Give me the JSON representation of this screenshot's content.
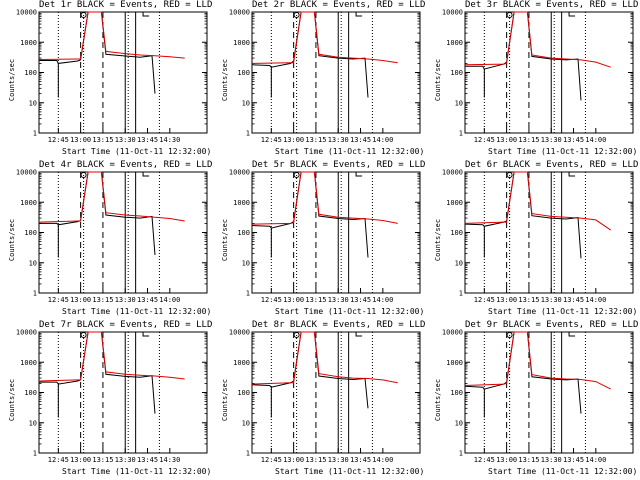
{
  "colors": {
    "events": "#000000",
    "lld": "#e00000",
    "axis": "#000000"
  },
  "chart_data": [
    {
      "type": "line",
      "title": "Det 1r BLACK = Events, RED = LLD",
      "xlabel": "Start Time (11-Oct-11 12:32:00)",
      "ylabel": "Counts/sec",
      "y_scale": "log",
      "ylim": [
        1,
        10000
      ],
      "yticks": [
        1,
        10,
        100,
        1000,
        10000
      ],
      "xticks": [
        "12:45",
        "13:00",
        "13:15",
        "13:30",
        "13:45",
        "14:30"
      ],
      "series": [
        {
          "name": "Events",
          "x": [
            "12:32",
            "12:44",
            "12:45",
            "12:58",
            "13:00",
            "13:05",
            "13:14",
            "13:17",
            "13:30",
            "13:40",
            "13:48",
            "13:50"
          ],
          "values": [
            250,
            250,
            200,
            240,
            260,
            12000,
            12000,
            400,
            350,
            320,
            360,
            20
          ]
        },
        {
          "name": "LLD",
          "x": [
            "12:32",
            "12:58",
            "13:00",
            "13:05",
            "13:14",
            "13:17",
            "13:30",
            "13:40",
            "13:50",
            "14:00",
            "14:10"
          ],
          "values": [
            270,
            280,
            280,
            12000,
            12000,
            500,
            420,
            380,
            360,
            330,
            300
          ]
        }
      ]
    },
    {
      "type": "line",
      "title": "Det 2r BLACK = Events, RED = LLD",
      "xlabel": "Start Time (11-Oct-11 12:32:00)",
      "ylabel": "Counts/sec",
      "y_scale": "log",
      "ylim": [
        1,
        10000
      ],
      "yticks": [
        1,
        10,
        100,
        1000,
        10000
      ],
      "xticks": [
        "12:45",
        "13:00",
        "13:15",
        "13:30",
        "13:45",
        "14:00"
      ],
      "series": [
        {
          "name": "Events",
          "x": [
            "12:32",
            "12:44",
            "12:45",
            "12:58",
            "13:00",
            "13:05",
            "13:14",
            "13:17",
            "13:30",
            "13:40",
            "13:48",
            "13:50"
          ],
          "values": [
            180,
            170,
            150,
            200,
            240,
            12000,
            12000,
            360,
            300,
            280,
            300,
            15
          ]
        },
        {
          "name": "LLD",
          "x": [
            "12:32",
            "12:58",
            "13:00",
            "13:05",
            "13:14",
            "13:17",
            "13:30",
            "13:40",
            "13:50",
            "14:00",
            "14:10"
          ],
          "values": [
            200,
            210,
            210,
            12000,
            12000,
            400,
            320,
            300,
            280,
            250,
            210
          ]
        }
      ]
    },
    {
      "type": "line",
      "title": "Det 3r BLACK = Events, RED = LLD",
      "xlabel": "Start Time (11-Oct-11 12:32:00)",
      "ylabel": "Counts/sec",
      "y_scale": "log",
      "ylim": [
        1,
        10000
      ],
      "yticks": [
        1,
        10,
        100,
        1000,
        10000
      ],
      "xticks": [
        "12:45",
        "13:00",
        "13:15",
        "13:30",
        "13:45",
        "14:00"
      ],
      "series": [
        {
          "name": "Events",
          "x": [
            "12:32",
            "12:44",
            "12:45",
            "12:58",
            "13:00",
            "13:05",
            "13:14",
            "13:17",
            "13:30",
            "13:40",
            "13:48",
            "13:50"
          ],
          "values": [
            160,
            160,
            130,
            190,
            220,
            12000,
            12000,
            340,
            280,
            260,
            280,
            12
          ]
        },
        {
          "name": "LLD",
          "x": [
            "12:32",
            "12:58",
            "13:00",
            "13:05",
            "13:14",
            "13:17",
            "13:30",
            "13:40",
            "13:50",
            "14:00",
            "14:10"
          ],
          "values": [
            180,
            190,
            200,
            12000,
            12000,
            380,
            300,
            280,
            260,
            220,
            150
          ]
        }
      ]
    },
    {
      "type": "line",
      "title": "Det 4r BLACK = Events, RED = LLD",
      "xlabel": "Start Time (11-Oct-11 12:32:00)",
      "ylabel": "Counts/sec",
      "y_scale": "log",
      "ylim": [
        1,
        10000
      ],
      "yticks": [
        1,
        10,
        100,
        1000,
        10000
      ],
      "xticks": [
        "12:45",
        "13:00",
        "13:15",
        "13:30",
        "13:45",
        "14:00"
      ],
      "series": [
        {
          "name": "Events",
          "x": [
            "12:32",
            "12:44",
            "12:45",
            "12:58",
            "13:00",
            "13:05",
            "13:14",
            "13:17",
            "13:30",
            "13:40",
            "13:48",
            "13:50"
          ],
          "values": [
            200,
            200,
            180,
            230,
            250,
            12000,
            12000,
            380,
            320,
            300,
            340,
            18
          ]
        },
        {
          "name": "LLD",
          "x": [
            "12:32",
            "12:58",
            "13:00",
            "13:05",
            "13:14",
            "13:17",
            "13:30",
            "13:40",
            "13:50",
            "14:00",
            "14:10"
          ],
          "values": [
            220,
            240,
            240,
            12000,
            12000,
            450,
            380,
            350,
            320,
            290,
            240
          ]
        }
      ]
    },
    {
      "type": "line",
      "title": "Det 5r BLACK = Events, RED = LLD",
      "xlabel": "Start Time (11-Oct-11 12:32:00)",
      "ylabel": "Counts/sec",
      "y_scale": "log",
      "ylim": [
        1,
        10000
      ],
      "yticks": [
        1,
        10,
        100,
        1000,
        10000
      ],
      "xticks": [
        "12:45",
        "13:00",
        "13:15",
        "13:30",
        "13:45",
        "14:00"
      ],
      "series": [
        {
          "name": "Events",
          "x": [
            "12:32",
            "12:44",
            "12:45",
            "12:58",
            "13:00",
            "13:05",
            "13:14",
            "13:17",
            "13:30",
            "13:40",
            "13:48",
            "13:50"
          ],
          "values": [
            170,
            160,
            140,
            200,
            230,
            12000,
            12000,
            350,
            290,
            270,
            290,
            15
          ]
        },
        {
          "name": "LLD",
          "x": [
            "12:32",
            "12:58",
            "13:00",
            "13:05",
            "13:14",
            "13:17",
            "13:30",
            "13:40",
            "13:50",
            "14:00",
            "14:10"
          ],
          "values": [
            190,
            200,
            210,
            12000,
            12000,
            400,
            320,
            300,
            280,
            250,
            200
          ]
        }
      ]
    },
    {
      "type": "line",
      "title": "Det 6r BLACK = Events, RED = LLD",
      "xlabel": "Start Time (11-Oct-11 12:32:00)",
      "ylabel": "Counts/sec",
      "y_scale": "log",
      "ylim": [
        1,
        10000
      ],
      "yticks": [
        1,
        10,
        100,
        1000,
        10000
      ],
      "xticks": [
        "12:45",
        "13:00",
        "13:15",
        "13:30",
        "13:45",
        "14:00"
      ],
      "series": [
        {
          "name": "Events",
          "x": [
            "12:32",
            "12:44",
            "12:45",
            "12:58",
            "13:00",
            "13:05",
            "13:14",
            "13:17",
            "13:30",
            "13:40",
            "13:48",
            "13:50"
          ],
          "values": [
            190,
            180,
            160,
            220,
            240,
            12000,
            12000,
            360,
            300,
            280,
            310,
            14
          ]
        },
        {
          "name": "LLD",
          "x": [
            "12:32",
            "12:58",
            "13:00",
            "13:05",
            "13:14",
            "13:17",
            "13:30",
            "13:40",
            "13:50",
            "14:00",
            "14:10"
          ],
          "values": [
            200,
            220,
            220,
            12000,
            12000,
            420,
            340,
            320,
            300,
            260,
            120
          ]
        }
      ]
    },
    {
      "type": "line",
      "title": "Det 7r BLACK = Events, RED = LLD",
      "xlabel": "Start Time (11-Oct-11 12:32:00)",
      "ylabel": "Counts/sec",
      "y_scale": "log",
      "ylim": [
        1,
        10000
      ],
      "yticks": [
        1,
        10,
        100,
        1000,
        10000
      ],
      "xticks": [
        "12:45",
        "13:00",
        "13:15",
        "13:30",
        "13:45",
        "14:30"
      ],
      "series": [
        {
          "name": "Events",
          "x": [
            "12:32",
            "12:44",
            "12:45",
            "12:58",
            "13:00",
            "13:05",
            "13:14",
            "13:17",
            "13:30",
            "13:40",
            "13:48",
            "13:50"
          ],
          "values": [
            220,
            220,
            190,
            240,
            260,
            12000,
            12000,
            400,
            340,
            320,
            360,
            20
          ]
        },
        {
          "name": "LLD",
          "x": [
            "12:32",
            "12:58",
            "13:00",
            "13:05",
            "13:14",
            "13:17",
            "13:30",
            "13:40",
            "13:50",
            "14:00",
            "14:10"
          ],
          "values": [
            240,
            260,
            260,
            12000,
            12000,
            480,
            400,
            370,
            350,
            320,
            280
          ]
        }
      ]
    },
    {
      "type": "line",
      "title": "Det 8r BLACK = Events, RED = LLD",
      "xlabel": "Start Time (11-Oct-11 12:32:00)",
      "ylabel": "Counts/sec",
      "y_scale": "log",
      "ylim": [
        1,
        10000
      ],
      "yticks": [
        1,
        10,
        100,
        1000,
        10000
      ],
      "xticks": [
        "12:45",
        "13:00",
        "13:15",
        "13:30",
        "13:45",
        "14:00"
      ],
      "series": [
        {
          "name": "Events",
          "x": [
            "12:32",
            "12:44",
            "12:45",
            "12:58",
            "13:00",
            "13:05",
            "13:14",
            "13:17",
            "13:30",
            "13:40",
            "13:48",
            "13:50"
          ],
          "values": [
            180,
            170,
            150,
            210,
            240,
            12000,
            12000,
            350,
            290,
            270,
            290,
            30
          ]
        },
        {
          "name": "LLD",
          "x": [
            "12:32",
            "12:58",
            "13:00",
            "13:05",
            "13:14",
            "13:17",
            "13:30",
            "13:40",
            "13:50",
            "14:00",
            "14:10"
          ],
          "values": [
            190,
            210,
            210,
            12000,
            12000,
            420,
            330,
            300,
            290,
            260,
            210
          ]
        }
      ]
    },
    {
      "type": "line",
      "title": "Det 9r BLACK = Events, RED = LLD",
      "xlabel": "Start Time (11-Oct-11 12:32:00)",
      "ylabel": "Counts/sec",
      "y_scale": "log",
      "ylim": [
        1,
        10000
      ],
      "yticks": [
        1,
        10,
        100,
        1000,
        10000
      ],
      "xticks": [
        "12:45",
        "13:00",
        "13:15",
        "13:30",
        "13:45",
        "14:00"
      ],
      "series": [
        {
          "name": "Events",
          "x": [
            "12:32",
            "12:44",
            "12:45",
            "12:58",
            "13:00",
            "13:05",
            "13:14",
            "13:17",
            "13:30",
            "13:40",
            "13:48",
            "13:50"
          ],
          "values": [
            160,
            150,
            130,
            190,
            220,
            12000,
            12000,
            330,
            280,
            260,
            280,
            20
          ]
        },
        {
          "name": "LLD",
          "x": [
            "12:32",
            "12:58",
            "13:00",
            "13:05",
            "13:14",
            "13:17",
            "13:30",
            "13:40",
            "13:50",
            "14:00",
            "14:10"
          ],
          "values": [
            170,
            190,
            200,
            12000,
            12000,
            390,
            300,
            280,
            270,
            230,
            130
          ]
        }
      ]
    }
  ],
  "markers": {
    "dotted_times": [
      "12:45",
      "13:02",
      "13:32",
      "13:53"
    ],
    "dashed_times": [
      "13:00",
      "13:15"
    ],
    "solid_times": [
      "13:30",
      "13:37"
    ]
  }
}
